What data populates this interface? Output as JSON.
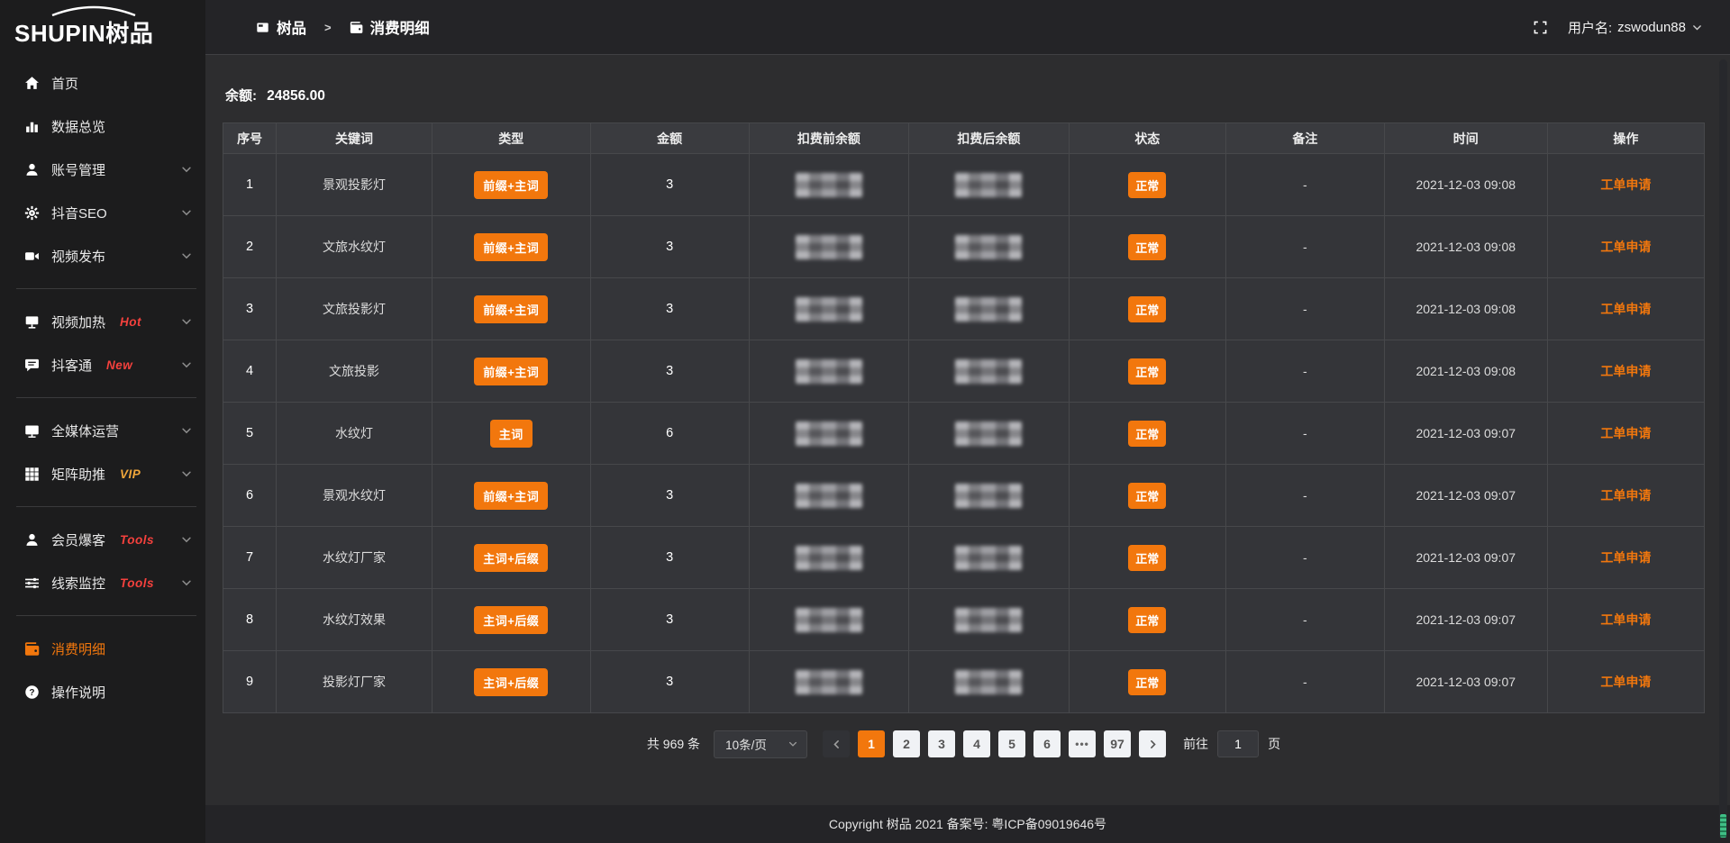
{
  "app": {
    "logo_en": "SHUPIN",
    "logo_cn": "树品"
  },
  "header": {
    "breadcrumb": [
      {
        "label": "树品",
        "icon": "app-icon"
      },
      {
        "label": "消费明细",
        "icon": "wallet-icon"
      }
    ],
    "separator": ">",
    "fullscreen_icon": "fullscreen-icon",
    "username_label": "用户名:",
    "username": "zswodun88",
    "user_dropdown_icon": "chevron-down-icon"
  },
  "sidebar": {
    "items": [
      {
        "label": "首页",
        "icon": "home-icon"
      },
      {
        "label": "数据总览",
        "icon": "chart-icon"
      },
      {
        "label": "账号管理",
        "icon": "user-icon",
        "expandable": true,
        "chev_icon": "chevron-down-icon"
      },
      {
        "label": "抖音SEO",
        "icon": "gear-icon",
        "expandable": true,
        "chev_icon": "chevron-down-icon"
      },
      {
        "label": "视频发布",
        "icon": "video-icon",
        "expandable": true,
        "chev_icon": "chevron-down-icon",
        "divider_after": true
      },
      {
        "label": "视频加热",
        "icon": "heat-icon",
        "badge": "Hot",
        "badge_color": "#f5413d",
        "expandable": true,
        "chev_icon": "chevron-down-icon"
      },
      {
        "label": "抖客通",
        "icon": "chat-icon",
        "badge": "New",
        "badge_color": "#f5413d",
        "expandable": true,
        "chev_icon": "chevron-down-icon",
        "divider_after": true
      },
      {
        "label": "全媒体运营",
        "icon": "monitor-icon",
        "expandable": true,
        "chev_icon": "chevron-down-icon"
      },
      {
        "label": "矩阵助推",
        "icon": "grid-icon",
        "badge": "VIP",
        "badge_color": "#f0a63a",
        "expandable": true,
        "chev_icon": "chevron-down-icon",
        "divider_after": true
      },
      {
        "label": "会员爆客",
        "icon": "member-icon",
        "badge": "Tools",
        "badge_color": "#f5413d",
        "expandable": true,
        "chev_icon": "chevron-down-icon"
      },
      {
        "label": "线索监控",
        "icon": "sliders-icon",
        "badge": "Tools",
        "badge_color": "#f5413d",
        "expandable": true,
        "chev_icon": "chevron-down-icon",
        "divider_after": true
      },
      {
        "label": "消费明细",
        "icon": "wallet-icon",
        "active": true
      },
      {
        "label": "操作说明",
        "icon": "question-icon"
      }
    ]
  },
  "main": {
    "balance_label": "余额:",
    "balance_value": "24856.00",
    "table": {
      "columns": [
        "序号",
        "关键词",
        "类型",
        "金额",
        "扣费前余额",
        "扣费后余额",
        "状态",
        "备注",
        "时间",
        "操作"
      ],
      "balances_masked": true,
      "rows": [
        {
          "index": "1",
          "keyword": "景观投影灯",
          "type": "前缀+主词",
          "amount": "3",
          "status": "正常",
          "remark": "-",
          "time": "2021-12-03 09:08",
          "action": "工单申请"
        },
        {
          "index": "2",
          "keyword": "文旅水纹灯",
          "type": "前缀+主词",
          "amount": "3",
          "status": "正常",
          "remark": "-",
          "time": "2021-12-03 09:08",
          "action": "工单申请"
        },
        {
          "index": "3",
          "keyword": "文旅投影灯",
          "type": "前缀+主词",
          "amount": "3",
          "status": "正常",
          "remark": "-",
          "time": "2021-12-03 09:08",
          "action": "工单申请"
        },
        {
          "index": "4",
          "keyword": "文旅投影",
          "type": "前缀+主词",
          "amount": "3",
          "status": "正常",
          "remark": "-",
          "time": "2021-12-03 09:08",
          "action": "工单申请"
        },
        {
          "index": "5",
          "keyword": "水纹灯",
          "type": "主词",
          "amount": "6",
          "status": "正常",
          "remark": "-",
          "time": "2021-12-03 09:07",
          "action": "工单申请"
        },
        {
          "index": "6",
          "keyword": "景观水纹灯",
          "type": "前缀+主词",
          "amount": "3",
          "status": "正常",
          "remark": "-",
          "time": "2021-12-03 09:07",
          "action": "工单申请"
        },
        {
          "index": "7",
          "keyword": "水纹灯厂家",
          "type": "主词+后缀",
          "amount": "3",
          "status": "正常",
          "remark": "-",
          "time": "2021-12-03 09:07",
          "action": "工单申请"
        },
        {
          "index": "8",
          "keyword": "水纹灯效果",
          "type": "主词+后缀",
          "amount": "3",
          "status": "正常",
          "remark": "-",
          "time": "2021-12-03 09:07",
          "action": "工单申请"
        },
        {
          "index": "9",
          "keyword": "投影灯厂家",
          "type": "主词+后缀",
          "amount": "3",
          "status": "正常",
          "remark": "-",
          "time": "2021-12-03 09:07",
          "action": "工单申请"
        }
      ]
    },
    "pagination": {
      "total_text": "共 969 条",
      "page_size": "10条/页",
      "size_dropdown_icon": "chevron-down-icon",
      "prev_icon": "chevron-left-icon",
      "next_icon": "chevron-right-icon",
      "pages": [
        {
          "label": "1",
          "active": true
        },
        {
          "label": "2"
        },
        {
          "label": "3"
        },
        {
          "label": "4"
        },
        {
          "label": "5"
        },
        {
          "label": "6"
        },
        {
          "label": "•••",
          "ellipsis": true
        },
        {
          "label": "97"
        }
      ],
      "goto_label": "前往",
      "goto_value": "1",
      "goto_suffix": "页"
    }
  },
  "footer": {
    "copyright": "Copyright 树品 2021 备案号: 粤ICP备09019646号"
  },
  "colors": {
    "accent_orange": "#f2770d",
    "badge_red": "#f5413d",
    "badge_gold": "#f0a63a",
    "scroll_thumb_teal": "#3fbf86"
  }
}
